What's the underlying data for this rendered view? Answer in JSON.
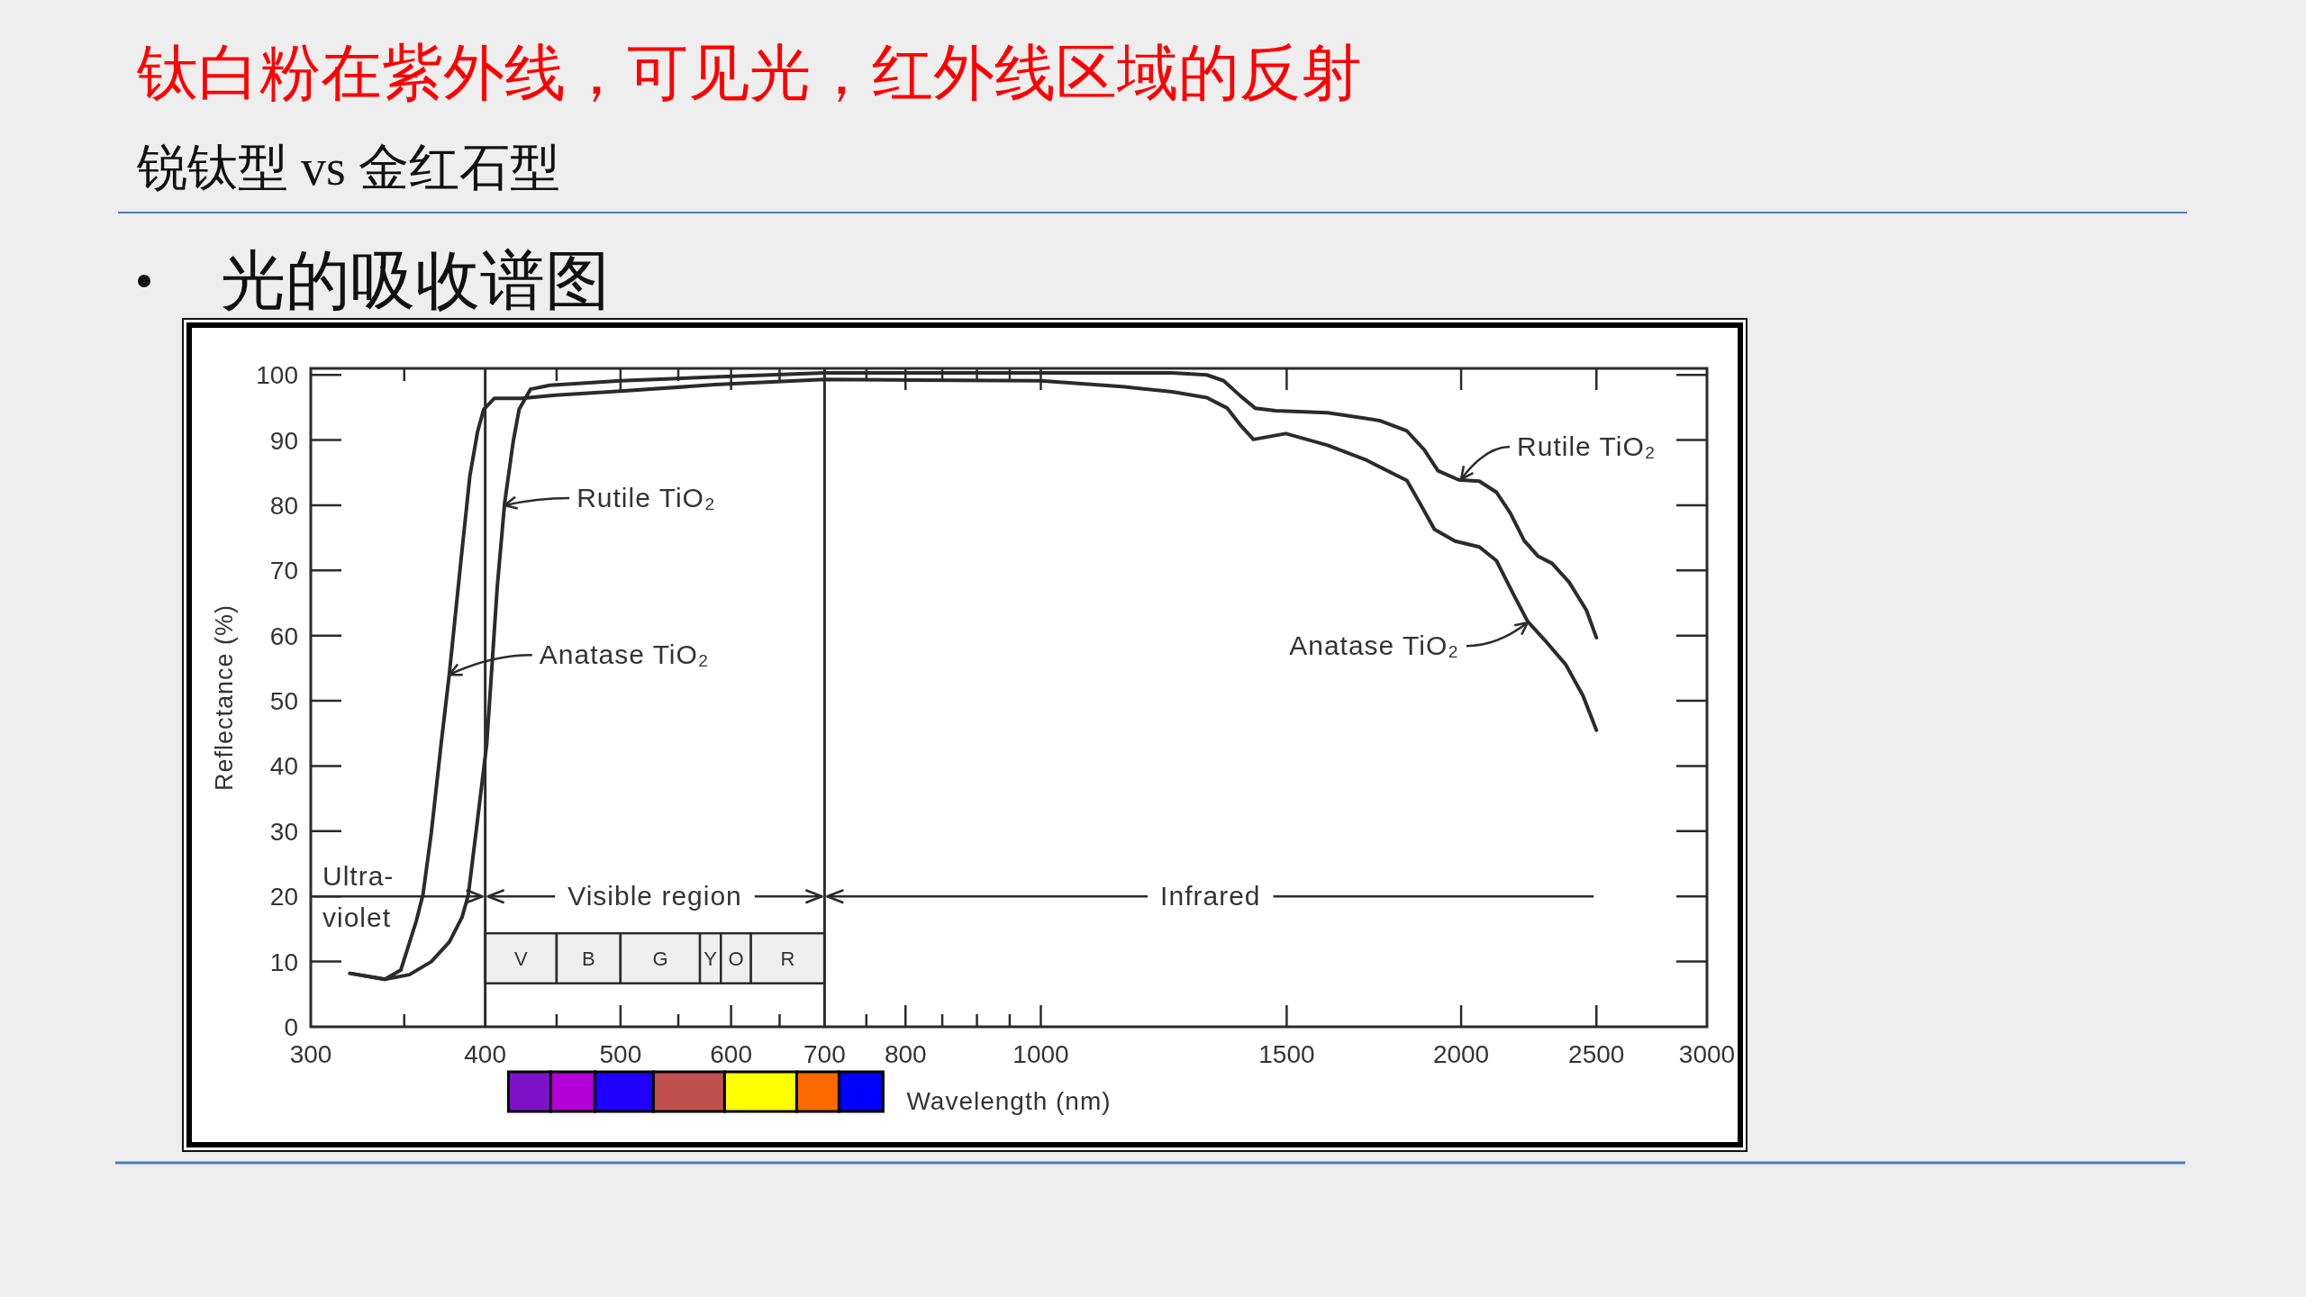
{
  "chart_data": {
    "type": "line",
    "title": "钛白粉在紫外线，可见光，红外线区域的反射",
    "subtitle": "锐钛型 vs 金红石型",
    "xlabel": "Wavelength (nm)",
    "ylabel": "Reflectance (%)",
    "annotations": [
      "光的吸收谱图",
      {
        "text": "Rutile TiO₂",
        "x": 413,
        "y": 80
      },
      {
        "text": "Anatase TiO₂",
        "x": 377,
        "y": 54
      },
      {
        "text": "Rutile TiO₂",
        "x": 2000,
        "y": 84
      },
      {
        "text": "Anatase TiO₂",
        "x": 2232,
        "y": 62
      },
      {
        "text": "Ultra-violet",
        "x": 400,
        "y": 20
      },
      {
        "text": "Visible region",
        "x": 700,
        "y": 20
      },
      {
        "text": "Infrared",
        "x": 700,
        "y": 20
      }
    ],
    "log": "x",
    "xlim": [
      300,
      3000
    ],
    "ylim": [
      0,
      101
    ],
    "xticks": [
      300,
      {
        "value": 350,
        "label": null
      },
      400,
      {
        "value": 450,
        "label": null
      },
      500,
      {
        "value": 550,
        "label": null
      },
      600,
      {
        "value": 650,
        "label": null
      },
      700,
      {
        "value": 750,
        "label": null
      },
      800,
      {
        "value": 850,
        "label": null
      },
      {
        "value": 900,
        "label": null
      },
      {
        "value": 950,
        "label": null
      },
      1000,
      1500,
      2000,
      2500,
      3000
    ],
    "yticks": [
      0,
      10,
      20,
      30,
      40,
      50,
      60,
      70,
      80,
      90,
      100
    ],
    "ref_lines": [
      {
        "axis": "x",
        "value": 400,
        "color": "#2b2b2b"
      },
      {
        "axis": "x",
        "value": 700,
        "color": "#2b2b2b"
      }
    ],
    "bands": [
      {
        "axis": "x",
        "from": 400,
        "to": 450,
        "label": "V",
        "color": "#efefef"
      },
      {
        "axis": "x",
        "from": 450,
        "to": 500,
        "label": "B",
        "color": "#efefef"
      },
      {
        "axis": "x",
        "from": 500,
        "to": 570,
        "label": "G",
        "color": "#efefef"
      },
      {
        "axis": "x",
        "from": 570,
        "to": 590,
        "label": "Y",
        "color": "#efefef"
      },
      {
        "axis": "x",
        "from": 590,
        "to": 620,
        "label": "O",
        "color": "#efefef"
      },
      {
        "axis": "x",
        "from": 620,
        "to": 700,
        "label": "R",
        "color": "#efefef"
      }
    ],
    "series": [
      {
        "color": "#2b2b2b",
        "x": [
          320,
          339,
          353,
          366,
          377,
          385,
          389,
          395,
          401,
          404,
          408,
          413,
          419,
          423,
          431,
          445,
          500,
          584,
          700,
          1000,
          1242,
          1315,
          1352,
          1391,
          1424,
          1473,
          1605,
          1748,
          1829,
          1882,
          1925,
          1992,
          2061,
          2120,
          2169,
          2219,
          2270,
          2323,
          2390,
          2459,
          2500
        ],
        "values": [
          8.2,
          7.3,
          8.0,
          10.0,
          13.0,
          16.8,
          20.2,
          31.8,
          43.4,
          53.7,
          67.4,
          80.3,
          89.9,
          94.7,
          97.8,
          98.4,
          99.1,
          99.7,
          100.3,
          100.3,
          100.3,
          100.0,
          99.1,
          96.7,
          94.9,
          94.5,
          94.2,
          93.0,
          91.4,
          88.5,
          85.3,
          83.9,
          83.7,
          82.0,
          78.8,
          74.6,
          72.2,
          71.1,
          68.2,
          63.9,
          59.7
        ]
      },
      {
        "color": "#2b2b2b",
        "x": [
          320,
          339,
          348,
          357,
          361,
          366,
          372,
          377,
          384,
          390,
          395,
          399,
          406,
          425,
          449,
          500,
          584,
          700,
          1000,
          1144,
          1242,
          1315,
          1360,
          1391,
          1420,
          1498,
          1605,
          1708,
          1829,
          1871,
          1914,
          1980,
          2061,
          2120,
          2182,
          2232,
          2296,
          2376,
          2445,
          2500
        ],
        "values": [
          8.2,
          7.3,
          8.7,
          16.2,
          20.3,
          29.8,
          43.5,
          54.1,
          70.8,
          84.5,
          91.3,
          94.7,
          96.4,
          96.4,
          96.9,
          97.5,
          98.5,
          99.3,
          99.1,
          98.2,
          97.4,
          96.5,
          94.9,
          92.2,
          90.1,
          91.0,
          89.2,
          87.0,
          83.8,
          80.1,
          76.3,
          74.5,
          73.6,
          71.5,
          66.2,
          62.2,
          59.3,
          55.6,
          50.8,
          45.5
        ]
      }
    ]
  }
}
